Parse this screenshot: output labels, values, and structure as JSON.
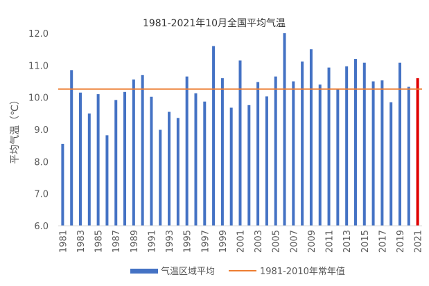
{
  "chart_data": {
    "type": "bar",
    "title": "1981-2021年10月全国平均气温",
    "ylabel": "平均气温（℃）",
    "xlabel": "",
    "ylim": [
      6.0,
      12.0
    ],
    "yticks": [
      "6.0",
      "7.0",
      "8.0",
      "9.0",
      "10.0",
      "11.0",
      "12.0"
    ],
    "x": [
      1981,
      1982,
      1983,
      1984,
      1985,
      1986,
      1987,
      1988,
      1989,
      1990,
      1991,
      1992,
      1993,
      1994,
      1995,
      1996,
      1997,
      1998,
      1999,
      2000,
      2001,
      2002,
      2003,
      2004,
      2005,
      2006,
      2007,
      2008,
      2009,
      2010,
      2011,
      2012,
      2013,
      2014,
      2015,
      2016,
      2017,
      2018,
      2019,
      2020,
      2021
    ],
    "xtick_labels": [
      "1981",
      "1983",
      "1985",
      "1987",
      "1989",
      "1991",
      "1993",
      "1995",
      "1997",
      "1999",
      "2001",
      "2003",
      "2005",
      "2007",
      "2009",
      "2011",
      "2013",
      "2015",
      "2017",
      "2019",
      "2021"
    ],
    "series": [
      {
        "name": "气温区域平均",
        "color": "#4472c4",
        "highlight_color": "#e00000",
        "highlight_x": 2021,
        "values": [
          8.55,
          10.85,
          10.15,
          9.5,
          10.1,
          8.82,
          9.92,
          10.17,
          10.56,
          10.7,
          10.02,
          8.99,
          9.55,
          9.36,
          10.65,
          10.13,
          9.87,
          11.6,
          10.6,
          9.68,
          11.15,
          9.76,
          10.48,
          10.03,
          10.65,
          12.0,
          10.5,
          11.12,
          11.5,
          10.4,
          10.93,
          10.25,
          10.97,
          11.2,
          11.08,
          10.5,
          10.53,
          9.85,
          11.08,
          10.33,
          10.6
        ]
      },
      {
        "name": "1981-2010年常年值",
        "type": "line",
        "color": "#ed7d31",
        "value": 10.26
      }
    ],
    "grid": false,
    "legend": "bottom"
  }
}
